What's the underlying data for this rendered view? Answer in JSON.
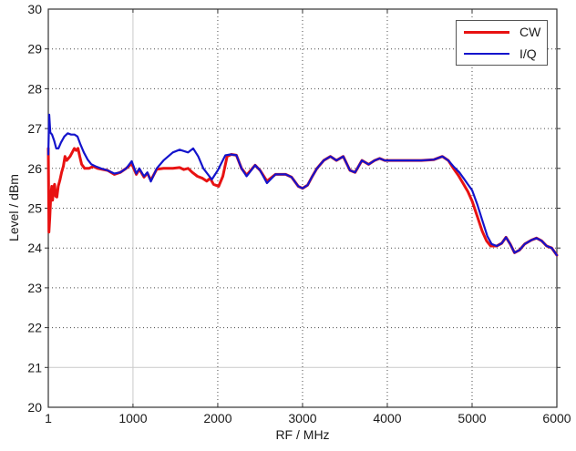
{
  "chart_data": {
    "type": "line",
    "title": "",
    "xlabel": "RF / MHz",
    "ylabel": "Level / dBm",
    "xlim": [
      1,
      6000
    ],
    "ylim": [
      20,
      30
    ],
    "x_ticks": [
      1,
      1000,
      2000,
      3000,
      4000,
      5000,
      6000
    ],
    "x_tick_labels": [
      "1",
      "1000",
      "2000",
      "3000",
      "4000",
      "5000",
      "6000"
    ],
    "y_ticks": [
      20,
      21,
      22,
      23,
      24,
      25,
      26,
      27,
      28,
      29,
      30
    ],
    "y_tick_labels": [
      "20",
      "21",
      "22",
      "23",
      "24",
      "25",
      "26",
      "27",
      "28",
      "29",
      "30"
    ],
    "grid": true,
    "grid_color": "#4a4a4a",
    "light_grid_color": "#c9c9c9",
    "light_grid_x": [
      1000
    ],
    "light_grid_y": [
      21
    ],
    "axis_color": "#333333",
    "legend_position": "top-right",
    "series": [
      {
        "name": "CW",
        "color": "#e81212",
        "width": 3,
        "points": [
          [
            1,
            26.5
          ],
          [
            8,
            24.4
          ],
          [
            18,
            24.75
          ],
          [
            30,
            25.3
          ],
          [
            42,
            25.55
          ],
          [
            52,
            25.2
          ],
          [
            62,
            25.5
          ],
          [
            75,
            25.6
          ],
          [
            88,
            25.3
          ],
          [
            102,
            25.28
          ],
          [
            118,
            25.55
          ],
          [
            138,
            25.7
          ],
          [
            158,
            25.9
          ],
          [
            178,
            26.05
          ],
          [
            198,
            26.3
          ],
          [
            218,
            26.2
          ],
          [
            238,
            26.25
          ],
          [
            258,
            26.3
          ],
          [
            283,
            26.4
          ],
          [
            308,
            26.5
          ],
          [
            330,
            26.45
          ],
          [
            352,
            26.5
          ],
          [
            372,
            26.3
          ],
          [
            395,
            26.1
          ],
          [
            430,
            26.0
          ],
          [
            480,
            26.0
          ],
          [
            530,
            26.05
          ],
          [
            580,
            26.0
          ],
          [
            650,
            25.97
          ],
          [
            700,
            25.95
          ],
          [
            780,
            25.85
          ],
          [
            850,
            25.9
          ],
          [
            920,
            26.0
          ],
          [
            985,
            26.12
          ],
          [
            1040,
            25.85
          ],
          [
            1075,
            25.98
          ],
          [
            1130,
            25.78
          ],
          [
            1170,
            25.88
          ],
          [
            1210,
            25.7
          ],
          [
            1280,
            25.98
          ],
          [
            1360,
            26.0
          ],
          [
            1470,
            26.0
          ],
          [
            1550,
            26.02
          ],
          [
            1600,
            25.97
          ],
          [
            1650,
            26.0
          ],
          [
            1700,
            25.9
          ],
          [
            1760,
            25.8
          ],
          [
            1820,
            25.75
          ],
          [
            1870,
            25.68
          ],
          [
            1910,
            25.75
          ],
          [
            1950,
            25.6
          ],
          [
            2010,
            25.55
          ],
          [
            2060,
            25.8
          ],
          [
            2110,
            26.3
          ],
          [
            2160,
            26.35
          ],
          [
            2220,
            26.33
          ],
          [
            2280,
            26.0
          ],
          [
            2340,
            25.83
          ],
          [
            2440,
            26.08
          ],
          [
            2500,
            25.95
          ],
          [
            2580,
            25.68
          ],
          [
            2680,
            25.85
          ],
          [
            2800,
            25.85
          ],
          [
            2870,
            25.78
          ],
          [
            2950,
            25.55
          ],
          [
            3000,
            25.5
          ],
          [
            3060,
            25.58
          ],
          [
            3110,
            25.78
          ],
          [
            3170,
            26.0
          ],
          [
            3250,
            26.2
          ],
          [
            3330,
            26.3
          ],
          [
            3400,
            26.2
          ],
          [
            3480,
            26.3
          ],
          [
            3560,
            25.95
          ],
          [
            3620,
            25.9
          ],
          [
            3700,
            26.2
          ],
          [
            3780,
            26.1
          ],
          [
            3850,
            26.2
          ],
          [
            3910,
            26.25
          ],
          [
            3970,
            26.2
          ],
          [
            4100,
            26.2
          ],
          [
            4250,
            26.2
          ],
          [
            4400,
            26.2
          ],
          [
            4550,
            26.22
          ],
          [
            4650,
            26.3
          ],
          [
            4720,
            26.2
          ],
          [
            4780,
            26.0
          ],
          [
            4840,
            25.82
          ],
          [
            4900,
            25.6
          ],
          [
            4950,
            25.42
          ],
          [
            5000,
            25.18
          ],
          [
            5060,
            24.8
          ],
          [
            5120,
            24.42
          ],
          [
            5170,
            24.18
          ],
          [
            5220,
            24.05
          ],
          [
            5290,
            24.05
          ],
          [
            5350,
            24.12
          ],
          [
            5400,
            24.27
          ],
          [
            5450,
            24.1
          ],
          [
            5500,
            23.88
          ],
          [
            5560,
            23.95
          ],
          [
            5620,
            24.1
          ],
          [
            5700,
            24.2
          ],
          [
            5760,
            24.25
          ],
          [
            5820,
            24.18
          ],
          [
            5880,
            24.05
          ],
          [
            5940,
            24.0
          ],
          [
            6000,
            23.82
          ]
        ]
      },
      {
        "name": "I/Q",
        "color": "#1414cc",
        "width": 2.2,
        "points": [
          [
            1,
            26.35
          ],
          [
            12,
            27.35
          ],
          [
            25,
            26.9
          ],
          [
            45,
            26.85
          ],
          [
            70,
            26.7
          ],
          [
            95,
            26.5
          ],
          [
            120,
            26.5
          ],
          [
            150,
            26.65
          ],
          [
            190,
            26.8
          ],
          [
            230,
            26.88
          ],
          [
            270,
            26.85
          ],
          [
            310,
            26.85
          ],
          [
            345,
            26.8
          ],
          [
            380,
            26.6
          ],
          [
            420,
            26.4
          ],
          [
            465,
            26.22
          ],
          [
            510,
            26.1
          ],
          [
            560,
            26.05
          ],
          [
            620,
            26.0
          ],
          [
            700,
            25.95
          ],
          [
            780,
            25.87
          ],
          [
            850,
            25.9
          ],
          [
            920,
            26.0
          ],
          [
            985,
            26.18
          ],
          [
            1040,
            25.87
          ],
          [
            1075,
            26.0
          ],
          [
            1130,
            25.8
          ],
          [
            1170,
            25.9
          ],
          [
            1210,
            25.67
          ],
          [
            1280,
            26.0
          ],
          [
            1360,
            26.2
          ],
          [
            1470,
            26.4
          ],
          [
            1550,
            26.47
          ],
          [
            1650,
            26.4
          ],
          [
            1710,
            26.5
          ],
          [
            1770,
            26.3
          ],
          [
            1830,
            26.0
          ],
          [
            1930,
            25.72
          ],
          [
            2000,
            25.95
          ],
          [
            2090,
            26.33
          ],
          [
            2150,
            26.35
          ],
          [
            2220,
            26.33
          ],
          [
            2280,
            26.0
          ],
          [
            2340,
            25.8
          ],
          [
            2440,
            26.08
          ],
          [
            2500,
            25.95
          ],
          [
            2580,
            25.63
          ],
          [
            2680,
            25.85
          ],
          [
            2800,
            25.85
          ],
          [
            2870,
            25.78
          ],
          [
            2950,
            25.55
          ],
          [
            3000,
            25.5
          ],
          [
            3060,
            25.58
          ],
          [
            3110,
            25.78
          ],
          [
            3170,
            26.0
          ],
          [
            3250,
            26.2
          ],
          [
            3330,
            26.3
          ],
          [
            3400,
            26.2
          ],
          [
            3480,
            26.3
          ],
          [
            3560,
            25.95
          ],
          [
            3620,
            25.9
          ],
          [
            3700,
            26.2
          ],
          [
            3780,
            26.1
          ],
          [
            3850,
            26.2
          ],
          [
            3910,
            26.25
          ],
          [
            3970,
            26.2
          ],
          [
            4100,
            26.2
          ],
          [
            4250,
            26.2
          ],
          [
            4400,
            26.2
          ],
          [
            4550,
            26.22
          ],
          [
            4650,
            26.3
          ],
          [
            4720,
            26.2
          ],
          [
            4780,
            26.05
          ],
          [
            4850,
            25.9
          ],
          [
            4900,
            25.75
          ],
          [
            4950,
            25.6
          ],
          [
            5000,
            25.45
          ],
          [
            5060,
            25.1
          ],
          [
            5120,
            24.7
          ],
          [
            5180,
            24.3
          ],
          [
            5230,
            24.1
          ],
          [
            5290,
            24.05
          ],
          [
            5350,
            24.12
          ],
          [
            5400,
            24.27
          ],
          [
            5450,
            24.1
          ],
          [
            5500,
            23.88
          ],
          [
            5560,
            23.95
          ],
          [
            5620,
            24.1
          ],
          [
            5700,
            24.2
          ],
          [
            5760,
            24.25
          ],
          [
            5820,
            24.18
          ],
          [
            5880,
            24.05
          ],
          [
            5940,
            24.0
          ],
          [
            6000,
            23.82
          ]
        ]
      }
    ]
  },
  "legend": {
    "entries": [
      {
        "label": "CW",
        "color": "#e81212",
        "linewidth": 3
      },
      {
        "label": "I/Q",
        "color": "#1414cc",
        "linewidth": 2
      }
    ]
  }
}
